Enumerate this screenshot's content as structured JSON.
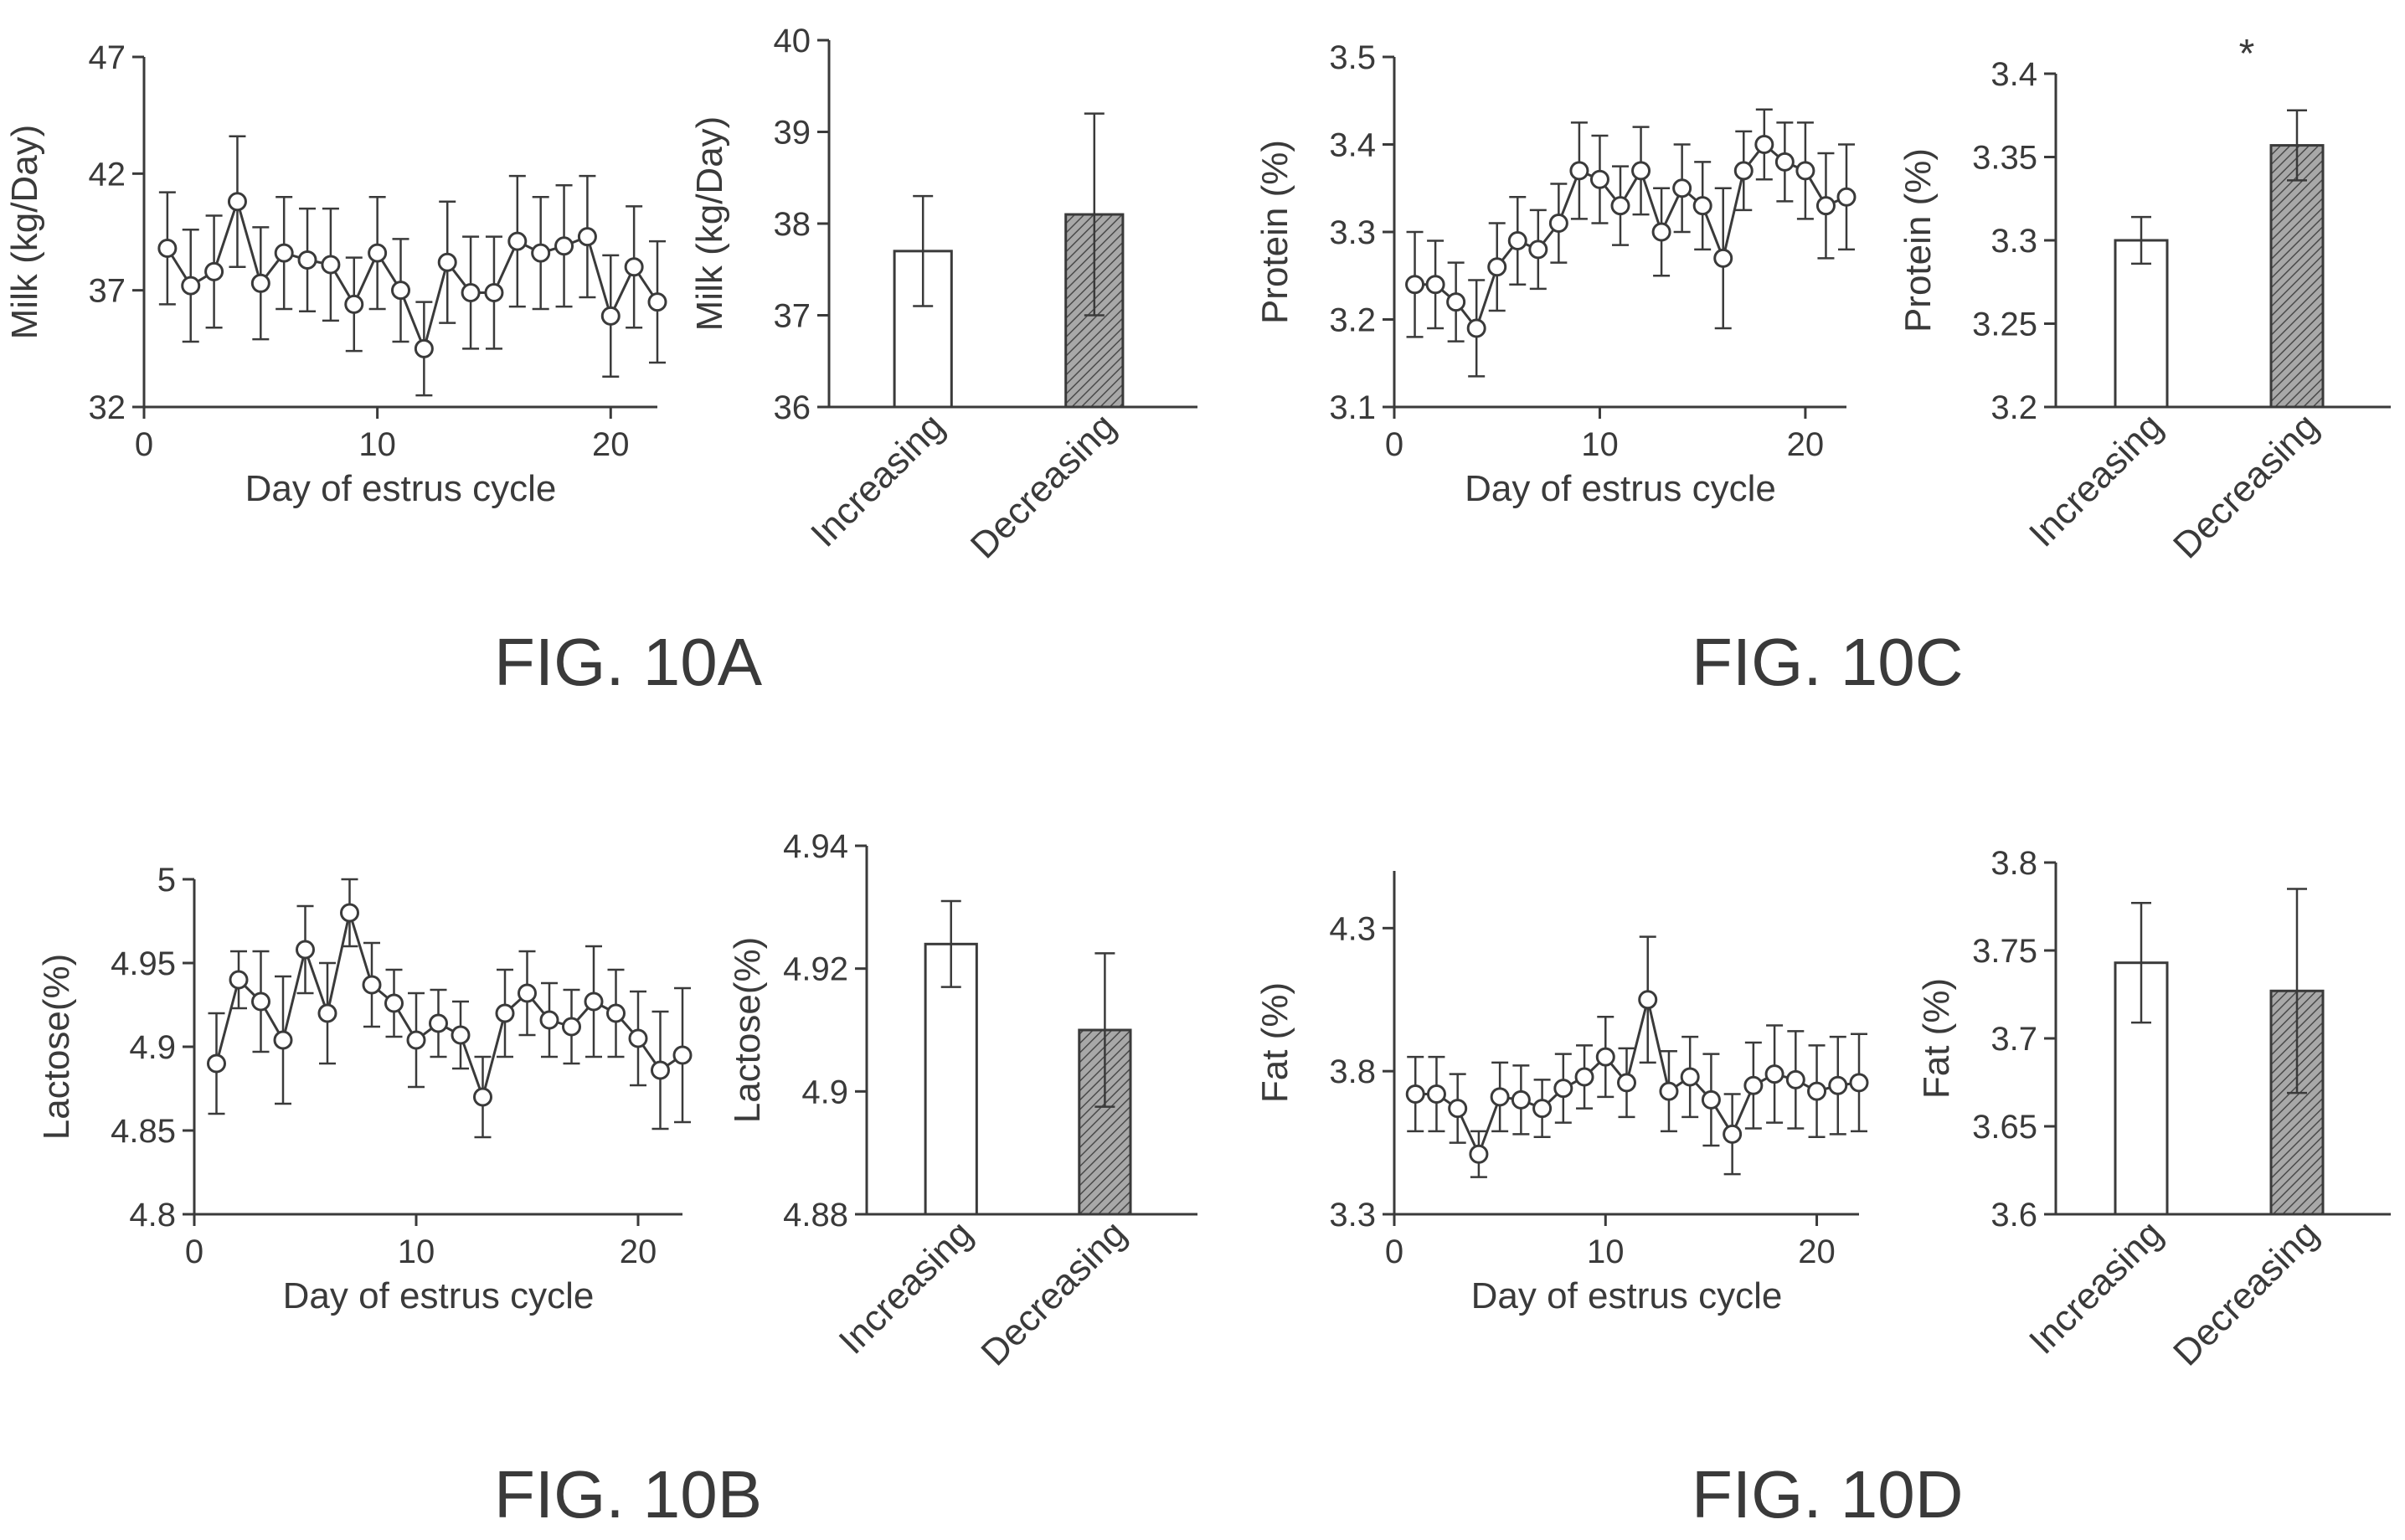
{
  "colors": {
    "ink": "#3a3a3a",
    "bar_increasing": "#ffffff",
    "bar_decreasing": "#8c8c8c"
  },
  "panels": [
    {
      "figure_label": "FIG. 10A",
      "chart_data": [
        {
          "type": "line",
          "xlabel": "Day of estrus cycle",
          "ylabel": "Milk (kg/Day)",
          "xlim": [
            0,
            22
          ],
          "ylim": [
            32,
            47
          ],
          "xticks": [
            "0",
            "10",
            "20"
          ],
          "yticks": [
            "32",
            "37",
            "42",
            "47"
          ],
          "series": [
            {
              "x": [
                1,
                2,
                3,
                4,
                5,
                6,
                7,
                8,
                9,
                10,
                11,
                12,
                13,
                14,
                15,
                16,
                17,
                18,
                19,
                20,
                21,
                22
              ],
              "y": [
                38.8,
                37.2,
                37.8,
                40.8,
                37.3,
                38.6,
                38.3,
                38.1,
                36.4,
                38.6,
                37.0,
                34.5,
                38.2,
                36.9,
                36.9,
                39.1,
                38.6,
                38.9,
                39.3,
                35.9,
                38.0,
                36.5
              ],
              "err": [
                2.4,
                2.4,
                2.4,
                2.8,
                2.4,
                2.4,
                2.2,
                2.4,
                2.0,
                2.4,
                2.2,
                2.0,
                2.6,
                2.4,
                2.4,
                2.8,
                2.4,
                2.6,
                2.6,
                2.6,
                2.6,
                2.6
              ]
            }
          ]
        },
        {
          "type": "bar",
          "ylabel": "Milk (kg/Day)",
          "categories": [
            "Increasing",
            "Decreasing"
          ],
          "values": [
            37.7,
            38.1
          ],
          "err": [
            0.6,
            1.1
          ],
          "ylim": [
            36,
            40
          ],
          "yticks": [
            "36",
            "37",
            "38",
            "39",
            "40"
          ]
        }
      ]
    },
    {
      "figure_label": "FIG. 10C",
      "chart_data": [
        {
          "type": "line",
          "xlabel": "Day of estrus cycle",
          "ylabel": "Protein (%)",
          "xlim": [
            0,
            22
          ],
          "ylim": [
            3.1,
            3.5
          ],
          "xticks": [
            "0",
            "10",
            "20"
          ],
          "yticks": [
            "3.1",
            "3.2",
            "3.3",
            "3.4",
            "3.5"
          ],
          "series": [
            {
              "x": [
                1,
                2,
                3,
                4,
                5,
                6,
                7,
                8,
                9,
                10,
                11,
                12,
                13,
                14,
                15,
                16,
                17,
                18,
                19,
                20,
                21,
                22
              ],
              "y": [
                3.24,
                3.24,
                3.22,
                3.19,
                3.26,
                3.29,
                3.28,
                3.31,
                3.37,
                3.36,
                3.33,
                3.37,
                3.3,
                3.35,
                3.33,
                3.27,
                3.37,
                3.4,
                3.38,
                3.37,
                3.33,
                3.34
              ],
              "err": [
                0.06,
                0.05,
                0.045,
                0.055,
                0.05,
                0.05,
                0.045,
                0.045,
                0.055,
                0.05,
                0.045,
                0.05,
                0.05,
                0.05,
                0.05,
                0.08,
                0.045,
                0.04,
                0.045,
                0.055,
                0.06,
                0.06
              ]
            }
          ]
        },
        {
          "type": "bar",
          "ylabel": "Protein (%)",
          "categories": [
            "Increasing",
            "Decreasing"
          ],
          "values": [
            3.3,
            3.357
          ],
          "err": [
            0.014,
            0.021
          ],
          "ylim": [
            3.2,
            3.4
          ],
          "yticks": [
            "3.2",
            "3.25",
            "3.3",
            "3.35",
            "3.4"
          ],
          "annotation": "*"
        }
      ]
    },
    {
      "figure_label": "FIG. 10B",
      "chart_data": [
        {
          "type": "line",
          "xlabel": "Day of estrus cycle",
          "ylabel": "Lactose(%)",
          "xlim": [
            0,
            22
          ],
          "ylim": [
            4.8,
            5.0
          ],
          "xticks": [
            "0",
            "10",
            "20"
          ],
          "yticks": [
            "4.8",
            "4.85",
            "4.9",
            "4.95",
            "5"
          ],
          "series": [
            {
              "x": [
                1,
                2,
                3,
                4,
                5,
                6,
                7,
                8,
                9,
                10,
                11,
                12,
                13,
                14,
                15,
                16,
                17,
                18,
                19,
                20,
                21,
                22
              ],
              "y": [
                4.89,
                4.94,
                4.927,
                4.904,
                4.958,
                4.92,
                4.98,
                4.937,
                4.926,
                4.904,
                4.914,
                4.907,
                4.87,
                4.92,
                4.932,
                4.916,
                4.912,
                4.927,
                4.92,
                4.905,
                4.886,
                4.895
              ],
              "err": [
                0.03,
                0.017,
                0.03,
                0.038,
                0.026,
                0.03,
                0.02,
                0.025,
                0.02,
                0.028,
                0.02,
                0.02,
                0.024,
                0.026,
                0.025,
                0.022,
                0.022,
                0.033,
                0.026,
                0.028,
                0.035,
                0.04
              ]
            }
          ]
        },
        {
          "type": "bar",
          "ylabel": "Lactose(%)",
          "categories": [
            "Increasing",
            "Decreasing"
          ],
          "values": [
            4.924,
            4.91
          ],
          "err": [
            0.007,
            0.0125
          ],
          "ylim": [
            4.88,
            4.94
          ],
          "yticks": [
            "4.88",
            "4.9",
            "4.92",
            "4.94"
          ]
        }
      ]
    },
    {
      "figure_label": "FIG. 10D",
      "chart_data": [
        {
          "type": "line",
          "xlabel": "Day of estrus cycle",
          "ylabel": "Fat (%)",
          "xlim": [
            0,
            22
          ],
          "ylim": [
            3.3,
            4.5
          ],
          "xticks": [
            "0",
            "10",
            "20"
          ],
          "yticks": [
            "3.3",
            "3.8",
            "4.3"
          ],
          "series": [
            {
              "x": [
                1,
                2,
                3,
                4,
                5,
                6,
                7,
                8,
                9,
                10,
                11,
                12,
                13,
                14,
                15,
                16,
                17,
                18,
                19,
                20,
                21,
                22
              ],
              "y": [
                3.72,
                3.72,
                3.67,
                3.51,
                3.71,
                3.7,
                3.67,
                3.74,
                3.78,
                3.85,
                3.76,
                4.05,
                3.73,
                3.78,
                3.7,
                3.58,
                3.75,
                3.79,
                3.77,
                3.73,
                3.75,
                3.76
              ],
              "err": [
                0.13,
                0.13,
                0.12,
                0.08,
                0.12,
                0.12,
                0.1,
                0.12,
                0.11,
                0.14,
                0.12,
                0.22,
                0.14,
                0.14,
                0.16,
                0.14,
                0.15,
                0.17,
                0.17,
                0.16,
                0.17,
                0.17
              ]
            }
          ]
        },
        {
          "type": "bar",
          "ylabel": "Fat (%)",
          "categories": [
            "Increasing",
            "Decreasing"
          ],
          "values": [
            3.743,
            3.727
          ],
          "err": [
            0.034,
            0.058
          ],
          "ylim": [
            3.6,
            3.8
          ],
          "yticks": [
            "3.6",
            "3.65",
            "3.7",
            "3.75",
            "3.8"
          ]
        }
      ]
    }
  ]
}
